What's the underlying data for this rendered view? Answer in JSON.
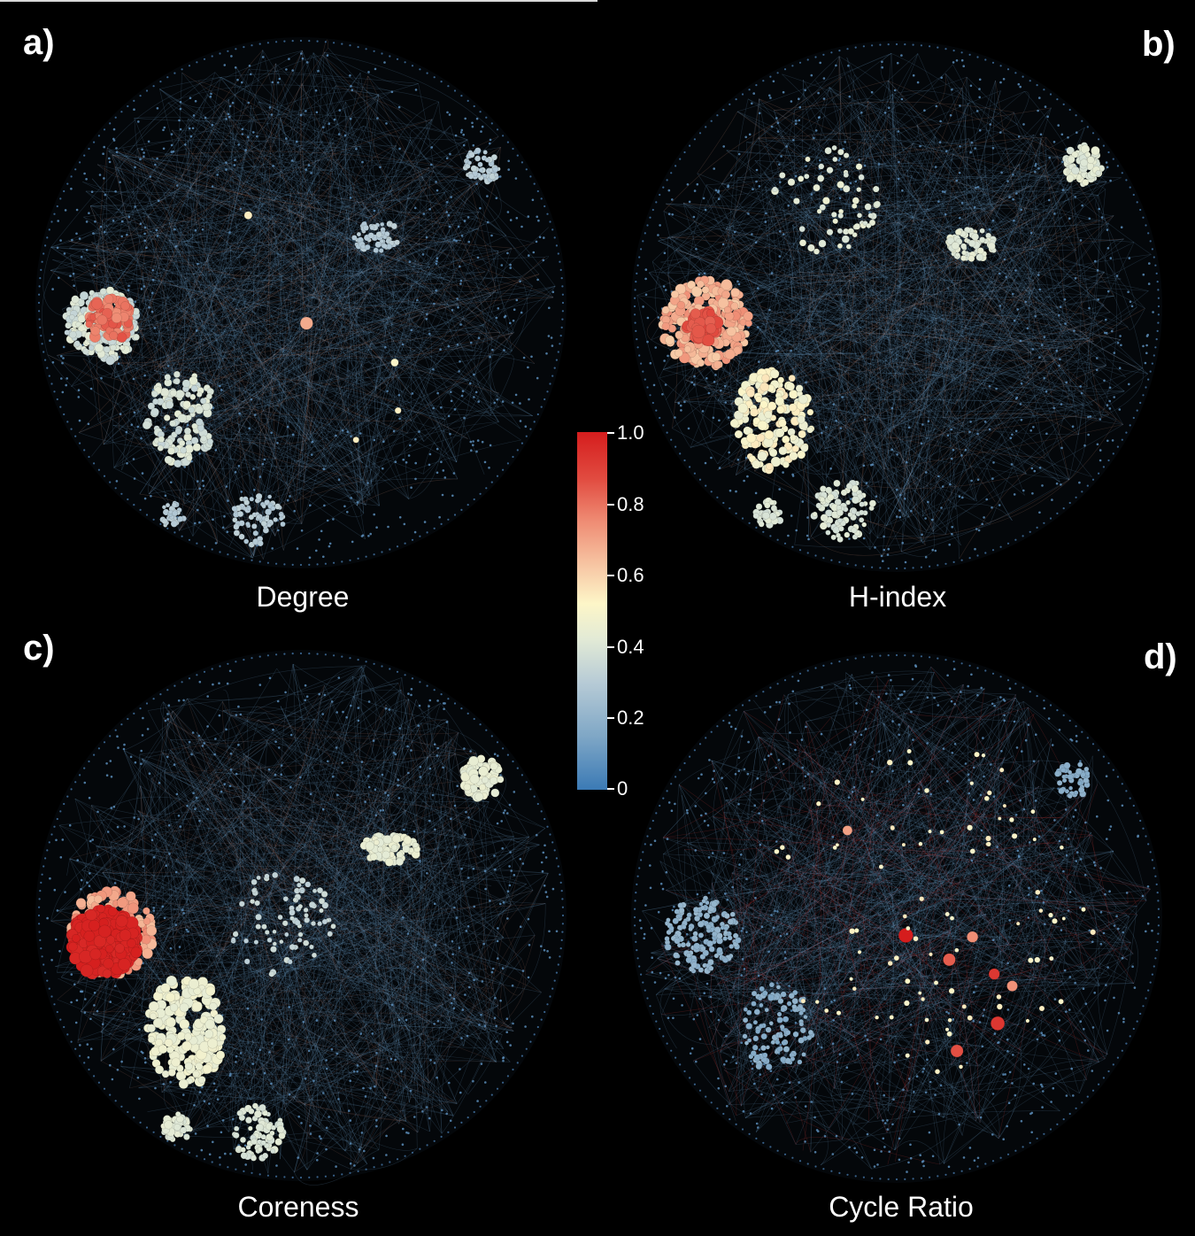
{
  "panels": [
    {
      "letter": "a)",
      "caption": "Degree",
      "hub_color": "#e6402f"
    },
    {
      "letter": "b)",
      "caption": "H-index",
      "hub_color": "#e5382d"
    },
    {
      "letter": "c)",
      "caption": "Coreness",
      "hub_color": "#d81e1e"
    },
    {
      "letter": "d)",
      "caption": "Cycle Ratio",
      "hub_color": "#ee2a22"
    }
  ],
  "colorbar": {
    "ticks": [
      "1.0",
      "0.8",
      "0.6",
      "0.4",
      "0.2",
      "0"
    ],
    "colors": {
      "low": "#3b7ab5",
      "mid": "#fdf6c8",
      "high": "#d51d1d"
    }
  }
}
